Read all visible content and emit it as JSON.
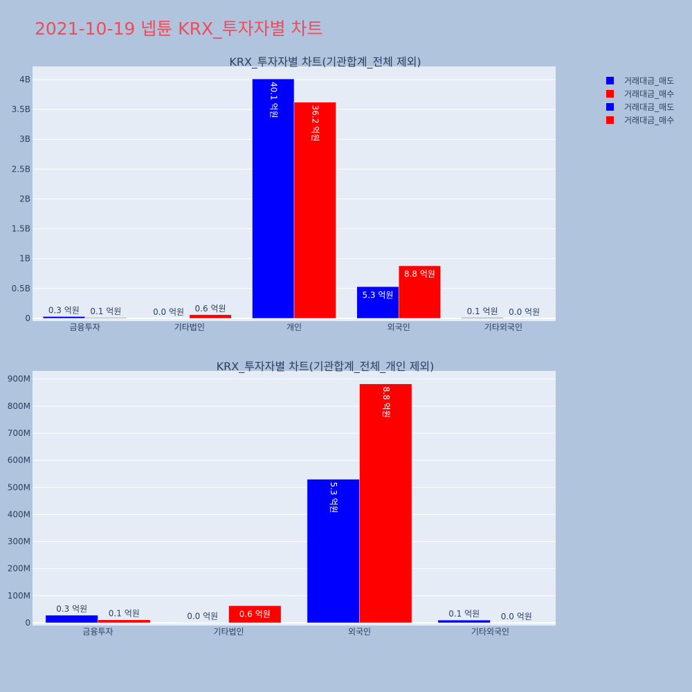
{
  "title": "2021-10-19 넵튠 KRX_투자자별 차트",
  "colors": {
    "sell": "#0000ff",
    "buy": "#ff0000",
    "plot_bg": "#e5ecf6",
    "page_bg": "#b0c4de",
    "title": "#ef4b5a",
    "text": "#2a3f5f"
  },
  "legend": [
    {
      "label": "거래대금_매도",
      "color": "#0000ff"
    },
    {
      "label": "거래대금_매수",
      "color": "#ff0000"
    },
    {
      "label": "거래대금_매도",
      "color": "#0000ff"
    },
    {
      "label": "거래대금_매수",
      "color": "#ff0000"
    }
  ],
  "chart_data": [
    {
      "type": "bar",
      "title": "KRX_투자자별 차트(기관합계_전체 제외)",
      "categories": [
        "금융투자",
        "기타법인",
        "개인",
        "외국인",
        "기타외국인"
      ],
      "series": [
        {
          "name": "거래대금_매도",
          "color": "#0000ff",
          "values": [
            30000000,
            0,
            4010000000,
            530000000,
            10000000
          ],
          "labels": [
            "0.3 억원",
            "0.0 억원",
            "40.1 억원",
            "5.3 억원",
            "0.1 억원"
          ]
        },
        {
          "name": "거래대금_매수",
          "color": "#ff0000",
          "values": [
            10000000,
            60000000,
            3620000000,
            880000000,
            0
          ],
          "labels": [
            "0.1 억원",
            "0.6 억원",
            "36.2 억원",
            "8.8 억원",
            "0.0 억원"
          ]
        }
      ],
      "yticks": [
        "0",
        "0.5B",
        "1B",
        "1.5B",
        "2B",
        "2.5B",
        "3B",
        "3.5B",
        "4B"
      ],
      "ylim": [
        0,
        4220000000
      ]
    },
    {
      "type": "bar",
      "title": "KRX_투자자별 차트(기관합계_전체_개인 제외)",
      "categories": [
        "금융투자",
        "기타법인",
        "외국인",
        "기타외국인"
      ],
      "series": [
        {
          "name": "거래대금_매도",
          "color": "#0000ff",
          "values": [
            28000000,
            1000000,
            530000000,
            10000000
          ],
          "labels": [
            "0.3 억원",
            "0.0 억원",
            "5.3 억원",
            "0.1 억원"
          ]
        },
        {
          "name": "거래대금_매수",
          "color": "#ff0000",
          "values": [
            11000000,
            63000000,
            882000000,
            0
          ],
          "labels": [
            "0.1 억원",
            "0.6 억원",
            "8.8 억원",
            "0.0 억원"
          ]
        }
      ],
      "yticks": [
        "0",
        "100M",
        "200M",
        "300M",
        "400M",
        "500M",
        "600M",
        "700M",
        "800M",
        "900M"
      ],
      "ylim": [
        0,
        930000000
      ]
    }
  ]
}
